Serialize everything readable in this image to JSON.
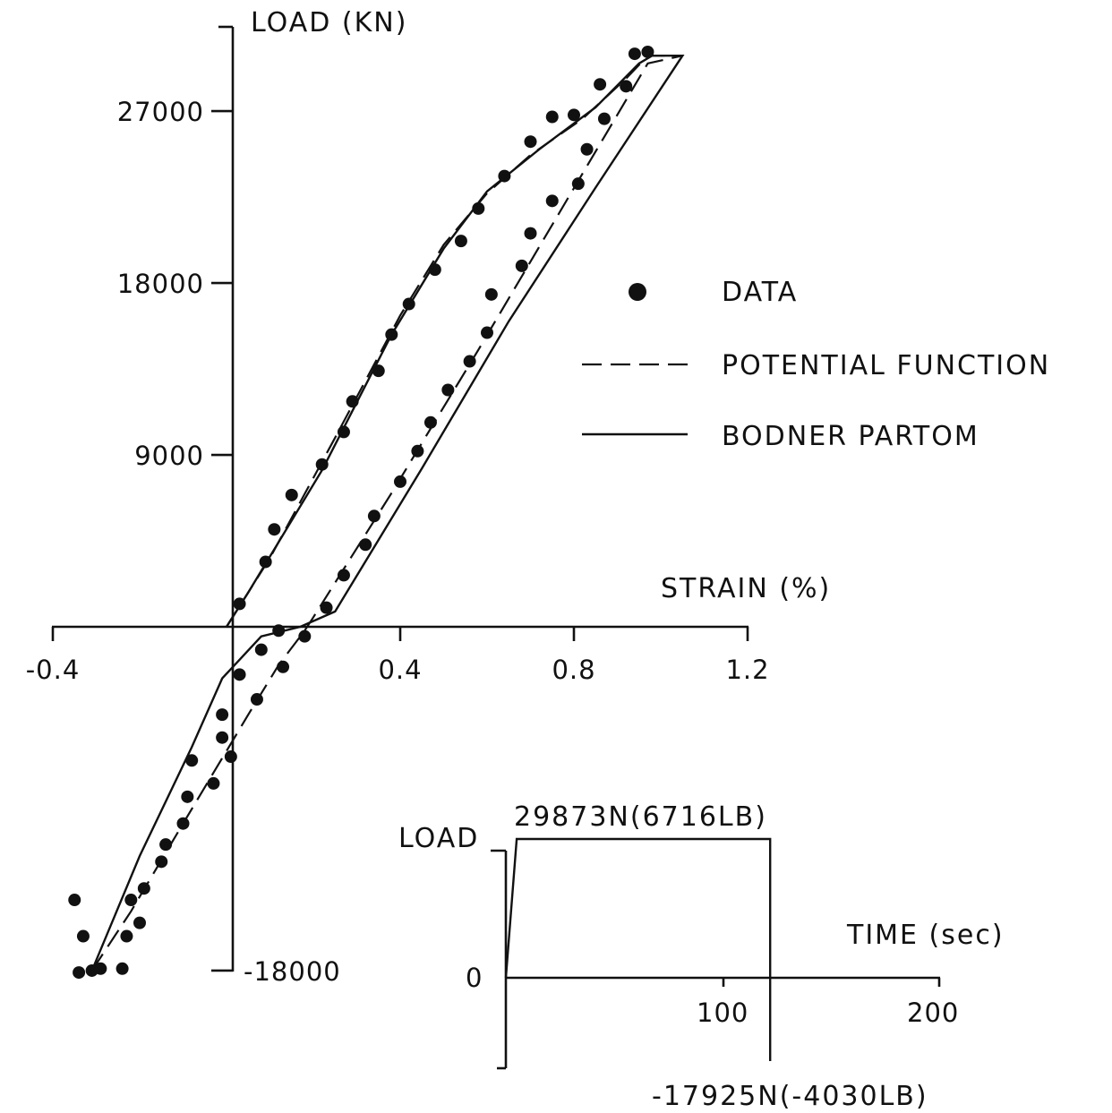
{
  "chart_data": [
    {
      "type": "scatter",
      "ylabel": "LOAD (KN)",
      "xlabel": "STRAIN (%)",
      "xlim": [
        -0.4,
        1.2
      ],
      "ylim": [
        -18000,
        30000
      ],
      "x_ticks": [
        "-0.4",
        "0.4",
        "0.8",
        "1.2"
      ],
      "y_ticks": [
        "27000",
        "18000",
        "9000",
        "-18000"
      ],
      "legend": [
        {
          "label": "DATA",
          "style": "dot"
        },
        {
          "label": "POTENTIAL FUNCTION",
          "style": "dashed"
        },
        {
          "label": "BODNER PARTOM",
          "style": "solid"
        }
      ],
      "legend_position": "right",
      "series": [
        {
          "name": "DATA",
          "points": [
            [
              0.03,
              1200
            ],
            [
              0.09,
              3400
            ],
            [
              0.11,
              5100
            ],
            [
              0.15,
              6900
            ],
            [
              0.22,
              8500
            ],
            [
              0.27,
              10200
            ],
            [
              0.29,
              11800
            ],
            [
              0.35,
              13400
            ],
            [
              0.38,
              15300
            ],
            [
              0.42,
              16900
            ],
            [
              0.48,
              18700
            ],
            [
              0.54,
              20200
            ],
            [
              0.58,
              21900
            ],
            [
              0.64,
              23600
            ],
            [
              0.7,
              25400
            ],
            [
              0.75,
              26700
            ],
            [
              0.8,
              26800
            ],
            [
              0.86,
              28400
            ],
            [
              0.94,
              30000
            ],
            [
              0.97,
              30100
            ],
            [
              0.92,
              28300
            ],
            [
              0.87,
              26600
            ],
            [
              0.83,
              25000
            ],
            [
              0.81,
              23200
            ],
            [
              0.75,
              22300
            ],
            [
              0.7,
              20600
            ],
            [
              0.68,
              18900
            ],
            [
              0.61,
              17400
            ],
            [
              0.6,
              15400
            ],
            [
              0.56,
              13900
            ],
            [
              0.51,
              12400
            ],
            [
              0.47,
              10700
            ],
            [
              0.44,
              9200
            ],
            [
              0.4,
              7600
            ],
            [
              0.34,
              5800
            ],
            [
              0.32,
              4300
            ],
            [
              0.27,
              2700
            ],
            [
              0.23,
              1000
            ],
            [
              0.18,
              -500
            ],
            [
              0.13,
              -2100
            ],
            [
              0.12,
              -200
            ],
            [
              0.08,
              -1200
            ],
            [
              0.03,
              -2500
            ],
            [
              0.07,
              -3800
            ],
            [
              -0.01,
              -4600
            ],
            [
              -0.01,
              -5800
            ],
            [
              0.01,
              -6800
            ],
            [
              -0.03,
              -8200
            ],
            [
              -0.08,
              -7000
            ],
            [
              -0.09,
              -8900
            ],
            [
              -0.1,
              -10300
            ],
            [
              -0.14,
              -11400
            ],
            [
              -0.15,
              -12300
            ],
            [
              -0.19,
              -13700
            ],
            [
              -0.22,
              -14300
            ],
            [
              -0.2,
              -15500
            ],
            [
              -0.23,
              -16200
            ],
            [
              -0.24,
              -17900
            ],
            [
              -0.29,
              -17900
            ],
            [
              -0.31,
              -18000
            ],
            [
              -0.33,
              -16200
            ],
            [
              -0.35,
              -14300
            ],
            [
              -0.34,
              -18100
            ]
          ]
        },
        {
          "name": "POTENTIAL FUNCTION",
          "points": [
            [
              -0.31,
              -18000
            ],
            [
              -0.22,
              -14900
            ],
            [
              -0.1,
              -10300
            ],
            [
              0.05,
              -4600
            ],
            [
              0.12,
              -2000
            ],
            [
              0.18,
              -200
            ],
            [
              0.2,
              500
            ],
            [
              0.38,
              7000
            ],
            [
              0.58,
              14500
            ],
            [
              0.78,
              22200
            ],
            [
              0.97,
              29500
            ],
            [
              1.05,
              29900
            ],
            [
              0.97,
              29900
            ],
            [
              0.92,
              28700
            ],
            [
              0.82,
              26600
            ],
            [
              0.7,
              24700
            ],
            [
              0.6,
              22700
            ],
            [
              0.5,
              20000
            ],
            [
              0.4,
              16300
            ],
            [
              0.25,
              9900
            ],
            [
              0.1,
              3600
            ],
            [
              0.0,
              0
            ]
          ]
        },
        {
          "name": "BODNER PARTOM",
          "points": [
            [
              -0.31,
              -18000
            ],
            [
              -0.2,
              -12000
            ],
            [
              -0.08,
              -6300
            ],
            [
              -0.01,
              -2700
            ],
            [
              0.08,
              -500
            ],
            [
              0.17,
              0
            ],
            [
              0.25,
              800
            ],
            [
              0.45,
              8300
            ],
            [
              0.65,
              16000
            ],
            [
              0.85,
              23000
            ],
            [
              1.05,
              29900
            ],
            [
              0.98,
              29900
            ],
            [
              0.95,
              29500
            ],
            [
              0.85,
              27200
            ],
            [
              0.72,
              25000
            ],
            [
              0.6,
              22800
            ],
            [
              0.5,
              19800
            ],
            [
              0.38,
              15300
            ],
            [
              0.22,
              8200
            ],
            [
              0.05,
              1800
            ],
            [
              0.0,
              0
            ]
          ]
        }
      ]
    },
    {
      "type": "line",
      "title": "",
      "ylabel": "LOAD",
      "xlabel": "TIME (sec)",
      "xlim": [
        0,
        200
      ],
      "x_ticks": [
        "100",
        "200"
      ],
      "y_tick_zero": "0",
      "max_label": "29873N(6716LB)",
      "min_label": "-17925N(-4030LB)",
      "series": [
        {
          "name": "",
          "x": [
            0,
            5,
            122,
            122
          ],
          "y": [
            0,
            29873,
            29873,
            -17925
          ]
        }
      ]
    }
  ]
}
